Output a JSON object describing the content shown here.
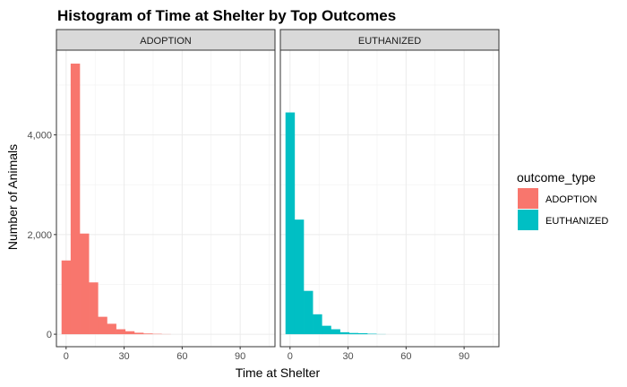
{
  "chart_data": {
    "type": "bar",
    "title": "Histogram of Time at Shelter by Top Outcomes",
    "xlabel": "Time at Shelter",
    "ylabel": "Number of Animals",
    "xlim": [
      -5,
      108
    ],
    "ylim": [
      -250,
      5700
    ],
    "x_ticks": [
      0,
      30,
      60,
      90
    ],
    "x_tick_labels": [
      "0",
      "30",
      "60",
      "90"
    ],
    "y_ticks": [
      0,
      2000,
      4000
    ],
    "y_tick_labels": [
      "0",
      "2,000",
      "4,000"
    ],
    "bin_width": 4.7,
    "bin_centers": [
      0,
      4.7,
      9.4,
      14.1,
      18.8,
      23.5,
      28.2,
      32.9,
      37.6,
      42.3,
      47.0,
      51.7
    ],
    "grid": true,
    "legend": {
      "title": "outcome_type",
      "placement": "right",
      "entries": [
        {
          "label": "ADOPTION",
          "color": "#F8766D"
        },
        {
          "label": "EUTHANIZED",
          "color": "#00BFC4"
        }
      ]
    },
    "facets": [
      {
        "label": "ADOPTION",
        "color": "#F8766D",
        "values": [
          1480,
          5430,
          2020,
          1040,
          350,
          210,
          100,
          60,
          30,
          15,
          8,
          3
        ]
      },
      {
        "label": "EUTHANIZED",
        "color": "#00BFC4",
        "values": [
          4450,
          2300,
          870,
          400,
          170,
          100,
          40,
          25,
          20,
          10,
          3,
          0
        ]
      }
    ]
  }
}
